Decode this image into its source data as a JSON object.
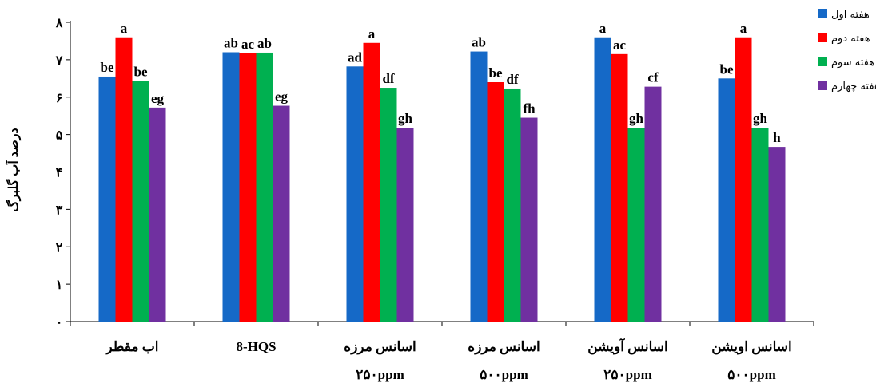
{
  "chart_data": {
    "type": "bar",
    "ylabel": "درصد آب گلبرگ",
    "ylim": [
      0,
      8
    ],
    "yticks": [
      "۰",
      "۱",
      "۲",
      "۳",
      "۴",
      "۵",
      "۶",
      "۷",
      "۸"
    ],
    "grid": false,
    "legend_position": "right",
    "categories": [
      {
        "line1": "اب مقطر",
        "line2": ""
      },
      {
        "line1": "8-HQS",
        "line2": ""
      },
      {
        "line1": "اسانس مرزه",
        "line2": "۲۵۰ppm"
      },
      {
        "line1": "اسانس مرزه",
        "line2": "۵۰۰ppm"
      },
      {
        "line1": "اسانس آویشن",
        "line2": "۲۵۰ppm"
      },
      {
        "line1": "اسانس اویشن",
        "line2": "۵۰۰ppm"
      }
    ],
    "series": [
      {
        "name": "هفته اول",
        "color": "#1569c7",
        "values": [
          6.55,
          7.2,
          6.82,
          7.22,
          7.6,
          6.5
        ],
        "labels": [
          "be",
          "ab",
          "ad",
          "ab",
          "a",
          "be"
        ]
      },
      {
        "name": "هفته دوم",
        "color": "#ff0000",
        "values": [
          7.6,
          7.17,
          7.45,
          6.4,
          7.15,
          7.6
        ],
        "labels": [
          "a",
          "ac",
          "a",
          "be",
          "ac",
          "a"
        ]
      },
      {
        "name": "هفته سوم",
        "color": "#00b050",
        "values": [
          6.43,
          7.19,
          6.25,
          6.23,
          5.18,
          5.18
        ],
        "labels": [
          "be",
          "ab",
          "df",
          "df",
          "gh",
          "gh"
        ]
      },
      {
        "name": "هفته چهارم",
        "color": "#7030a0",
        "values": [
          5.72,
          5.77,
          5.18,
          5.45,
          6.28,
          4.67
        ],
        "labels": [
          "eg",
          "eg",
          "gh",
          "fh",
          "cf",
          "h"
        ]
      }
    ]
  }
}
